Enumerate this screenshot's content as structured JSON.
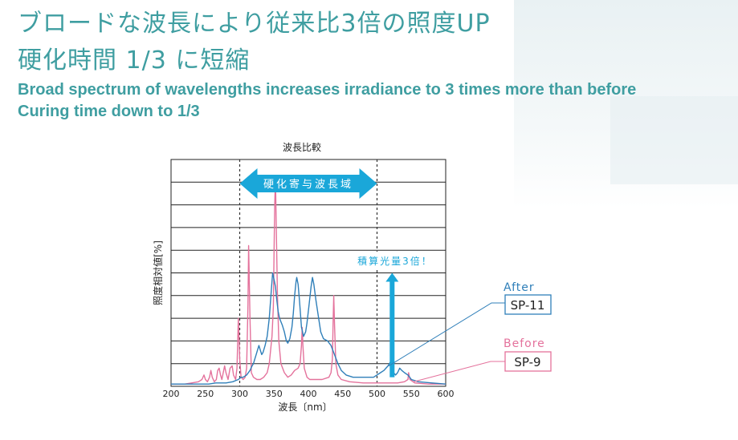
{
  "headline": {
    "jp_line1": "ブロードな波長により従来比3倍の照度UP",
    "jp_line2": "硬化時間 1/3 に短縮",
    "en_line1": "Broad spectrum of wavelengths increases irradiance to 3 times more than before",
    "en_line2": "Curing time down to 1/3"
  },
  "chart_data": {
    "type": "line",
    "title": "波長比較",
    "xlabel": "波長〔nm〕",
    "ylabel": "照度相対値[%]",
    "xlim": [
      200,
      600
    ],
    "ylim": [
      0,
      100
    ],
    "x_ticks": [
      "200",
      "250",
      "300",
      "350",
      "400",
      "450",
      "500",
      "550",
      "600"
    ],
    "grid": true,
    "curing_band": {
      "label": "硬化寄与波長域",
      "x_start": 300,
      "x_end": 500
    },
    "increase_arrow": {
      "label": "積算光量3倍！",
      "x": 522,
      "y_from": 4,
      "y_to": 50
    },
    "series": [
      {
        "name": "SP-9",
        "legend_title": "Before",
        "color": "#e4729c",
        "points": [
          [
            200,
            1
          ],
          [
            210,
            1
          ],
          [
            220,
            1
          ],
          [
            230,
            1.5
          ],
          [
            240,
            2
          ],
          [
            245,
            3
          ],
          [
            248,
            5
          ],
          [
            250,
            3
          ],
          [
            253,
            2
          ],
          [
            256,
            4
          ],
          [
            258,
            7
          ],
          [
            260,
            4
          ],
          [
            263,
            2
          ],
          [
            266,
            3
          ],
          [
            268,
            7
          ],
          [
            270,
            8
          ],
          [
            272,
            5
          ],
          [
            274,
            3
          ],
          [
            276,
            6
          ],
          [
            278,
            9
          ],
          [
            280,
            6
          ],
          [
            283,
            3
          ],
          [
            286,
            8
          ],
          [
            289,
            9
          ],
          [
            291,
            5
          ],
          [
            294,
            3
          ],
          [
            296,
            8
          ],
          [
            298,
            30
          ],
          [
            300,
            12
          ],
          [
            302,
            4
          ],
          [
            305,
            3
          ],
          [
            308,
            4
          ],
          [
            310,
            8
          ],
          [
            312,
            36
          ],
          [
            313,
            62
          ],
          [
            315,
            30
          ],
          [
            317,
            6
          ],
          [
            320,
            4
          ],
          [
            325,
            3
          ],
          [
            330,
            3
          ],
          [
            335,
            4
          ],
          [
            340,
            6
          ],
          [
            343,
            10
          ],
          [
            345,
            16
          ],
          [
            347,
            22
          ],
          [
            349,
            35
          ],
          [
            350,
            60
          ],
          [
            351,
            80
          ],
          [
            352,
            92
          ],
          [
            353,
            75
          ],
          [
            355,
            40
          ],
          [
            357,
            20
          ],
          [
            360,
            10
          ],
          [
            365,
            6
          ],
          [
            370,
            4
          ],
          [
            375,
            5
          ],
          [
            380,
            7
          ],
          [
            385,
            8
          ],
          [
            388,
            10
          ],
          [
            390,
            18
          ],
          [
            391,
            26
          ],
          [
            392,
            18
          ],
          [
            394,
            8
          ],
          [
            398,
            4
          ],
          [
            402,
            3
          ],
          [
            410,
            3
          ],
          [
            420,
            3
          ],
          [
            430,
            4
          ],
          [
            433,
            6
          ],
          [
            435,
            12
          ],
          [
            436,
            28
          ],
          [
            437,
            40
          ],
          [
            438,
            28
          ],
          [
            440,
            10
          ],
          [
            443,
            5
          ],
          [
            448,
            3
          ],
          [
            460,
            2
          ],
          [
            480,
            1.5
          ],
          [
            500,
            1.5
          ],
          [
            530,
            1.5
          ],
          [
            540,
            2
          ],
          [
            545,
            3
          ],
          [
            546,
            6
          ],
          [
            548,
            3
          ],
          [
            555,
            1.5
          ],
          [
            575,
            1
          ],
          [
            600,
            1
          ]
        ]
      },
      {
        "name": "SP-11",
        "legend_title": "After",
        "color": "#2f7fb9",
        "points": [
          [
            200,
            1
          ],
          [
            220,
            1
          ],
          [
            240,
            1
          ],
          [
            255,
            1
          ],
          [
            265,
            1.5
          ],
          [
            280,
            1.5
          ],
          [
            290,
            2
          ],
          [
            298,
            3
          ],
          [
            302,
            4
          ],
          [
            305,
            4
          ],
          [
            310,
            5
          ],
          [
            315,
            7
          ],
          [
            318,
            9
          ],
          [
            320,
            10
          ],
          [
            322,
            12
          ],
          [
            324,
            14
          ],
          [
            326,
            16
          ],
          [
            328,
            18
          ],
          [
            330,
            16
          ],
          [
            332,
            14
          ],
          [
            334,
            15
          ],
          [
            337,
            18
          ],
          [
            340,
            22
          ],
          [
            343,
            30
          ],
          [
            346,
            42
          ],
          [
            348,
            50
          ],
          [
            350,
            47
          ],
          [
            352,
            44
          ],
          [
            354,
            38
          ],
          [
            356,
            33
          ],
          [
            358,
            30
          ],
          [
            362,
            27
          ],
          [
            365,
            24
          ],
          [
            368,
            20
          ],
          [
            370,
            19
          ],
          [
            373,
            21
          ],
          [
            376,
            26
          ],
          [
            378,
            32
          ],
          [
            380,
            40
          ],
          [
            382,
            46
          ],
          [
            383,
            48
          ],
          [
            385,
            45
          ],
          [
            387,
            38
          ],
          [
            390,
            26
          ],
          [
            393,
            22
          ],
          [
            396,
            24
          ],
          [
            398,
            28
          ],
          [
            401,
            36
          ],
          [
            404,
            44
          ],
          [
            406,
            48
          ],
          [
            408,
            45
          ],
          [
            411,
            38
          ],
          [
            415,
            30
          ],
          [
            418,
            24
          ],
          [
            422,
            21
          ],
          [
            428,
            20
          ],
          [
            433,
            18
          ],
          [
            438,
            14
          ],
          [
            443,
            10
          ],
          [
            448,
            7
          ],
          [
            455,
            5
          ],
          [
            465,
            4
          ],
          [
            475,
            4
          ],
          [
            485,
            4
          ],
          [
            495,
            4
          ],
          [
            505,
            6
          ],
          [
            510,
            7
          ],
          [
            513,
            8
          ],
          [
            516,
            9
          ],
          [
            518,
            10
          ],
          [
            520,
            11
          ],
          [
            522,
            9
          ],
          [
            524,
            6
          ],
          [
            527,
            5
          ],
          [
            530,
            6
          ],
          [
            533,
            8
          ],
          [
            536,
            7
          ],
          [
            540,
            6
          ],
          [
            545,
            5
          ],
          [
            550,
            3
          ],
          [
            560,
            2
          ],
          [
            580,
            1.5
          ],
          [
            600,
            1
          ]
        ]
      }
    ]
  }
}
